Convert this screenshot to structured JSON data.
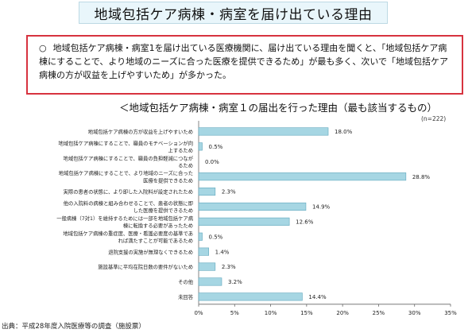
{
  "title": "地域包括ケア病棟・病室を届け出ている理由",
  "summary": {
    "bullet": "○",
    "text": "地域包括ケア病棟・病室1を届け出ている医療機関に、届け出ている理由を聞くと、「地域包括ケア病棟にすることで、より地域のニーズに合った医療を提供できるため」が最も多く、次いで「地域包括ケア病棟の方が収益を上げやすいため」が多かった。"
  },
  "chart_title": "＜地域包括ケア病棟・病室１の届出を行った理由（最も該当するもの）",
  "n_note": "(n=222)",
  "source": "出典：平成28年度入院医療等の調査（施設票）",
  "colors": {
    "bar": "#a6d6e3",
    "bar_stroke": "#5fa7bd",
    "axis": "#666666",
    "accent": "#d7333f"
  },
  "chart_data": {
    "type": "bar",
    "orientation": "horizontal",
    "categories": [
      [
        "地域包括ケア病棟の方が収益を上げやすいため"
      ],
      [
        "地域包括ケア病棟にすることで、職員のモチベーションが向",
        "上するため"
      ],
      [
        "地域包括ケア病棟にすることで、職員の負担軽減につなが",
        "るため"
      ],
      [
        "地域包括ケア病棟にすることで、より地域のニーズに合った",
        "医療を提供できるため"
      ],
      [
        "実際の患者の状態に、より即した入院料が設定されたため"
      ],
      [
        "他の入院料の病棟と組み合わせることで、患者の状態に即",
        "した医療を提供できるため"
      ],
      [
        "一般病棟（7対1）を維持するためには一部を地域包括ケア病",
        "棟に転換する必要があったため"
      ],
      [
        "地域包括ケア病棟の重症度、医療・看護必要度の基準であ",
        "れば満たすことが可能であるため"
      ],
      [
        "退院支援の実施が無理なくできるため"
      ],
      [
        "施設基準に平均在院日数の要件がないため"
      ],
      [
        "その他"
      ],
      [
        "未回答"
      ]
    ],
    "values": [
      18.0,
      0.5,
      0.0,
      28.8,
      2.3,
      14.9,
      12.6,
      0.5,
      1.4,
      2.3,
      3.2,
      14.4
    ],
    "value_labels": [
      "18.0%",
      "0.5%",
      "0.0%",
      "28.8%",
      "2.3%",
      "14.9%",
      "12.6%",
      "0.5%",
      "1.4%",
      "2.3%",
      "3.2%",
      "14.4%"
    ],
    "xlim": [
      0,
      35
    ],
    "xticks": [
      0,
      5,
      10,
      15,
      20,
      25,
      30,
      35
    ],
    "xtick_labels": [
      "0%",
      "5%",
      "10%",
      "15%",
      "20%",
      "25%",
      "30%",
      "35%"
    ],
    "grid": false
  }
}
